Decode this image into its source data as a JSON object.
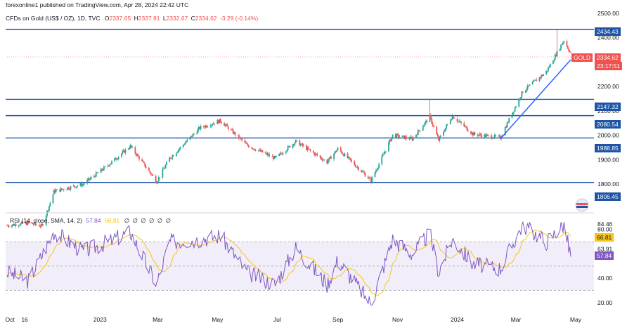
{
  "header": {
    "published": "forexonline1 published on TradingView.com, Apr 28, 2024 22:42 UTC",
    "symbol_line": "CFDs on Gold (US$ / OZ), 1D, TVC",
    "ohlc": {
      "O": "2337.65",
      "H": "2337.91",
      "L": "2332.67",
      "C": "2334.62",
      "change": "-3.29 (-0.14%)"
    }
  },
  "price_tag": {
    "symbol": "GOLD",
    "price": "2334.62",
    "countdown": "23:17:51"
  },
  "levels": [
    "2434.43",
    "2147.32",
    "2080.54",
    "1988.85",
    "1806.45"
  ],
  "rsi_panel": {
    "label": "RSI (14, close, SMA, 14, 2)",
    "rsi_value": "57.84",
    "sma_value": "66.81",
    "extra_values": [
      "∅",
      "∅",
      "∅",
      "∅",
      "∅",
      "∅"
    ],
    "axis_labels": [
      "84.46",
      "80.00",
      "63.91",
      "40.00",
      "20.00"
    ]
  },
  "colors": {
    "up": "#26a69a",
    "down": "#ef5350",
    "level_line": "#1e53a6",
    "rsi_line": "#7e57c2",
    "rsi_sma": "#f5c518",
    "rsi_band": "#ede7f6",
    "price_tag": "#ef5350",
    "trend_line": "#2962ff"
  },
  "chart_data": {
    "type": "candlestick",
    "price_axis_ticks": [
      "2500.00",
      "2400.00",
      "2300.00",
      "2200.00",
      "2100.00",
      "2000.00",
      "1900.00",
      "1800.00"
    ],
    "time_axis_labels": [
      "Oct",
      "16",
      "2023",
      "Mar",
      "May",
      "Jul",
      "Sep",
      "Nov",
      "2024",
      "Mar",
      "May"
    ],
    "price_path": [
      [
        "2022-09-28",
        1630
      ],
      [
        "2022-10-20",
        1640
      ],
      [
        "2022-11-03",
        1628
      ],
      [
        "2022-11-15",
        1770
      ],
      [
        "2022-12-15",
        1800
      ],
      [
        "2023-01-10",
        1880
      ],
      [
        "2023-02-01",
        1955
      ],
      [
        "2023-02-28",
        1810
      ],
      [
        "2023-03-13",
        1905
      ],
      [
        "2023-04-13",
        2030
      ],
      [
        "2023-05-04",
        2060
      ],
      [
        "2023-05-31",
        1960
      ],
      [
        "2023-06-29",
        1905
      ],
      [
        "2023-07-20",
        1975
      ],
      [
        "2023-08-21",
        1890
      ],
      [
        "2023-09-01",
        1945
      ],
      [
        "2023-10-05",
        1815
      ],
      [
        "2023-10-27",
        2000
      ],
      [
        "2023-11-16",
        1985
      ],
      [
        "2023-12-04",
        2075
      ],
      [
        "2023-12-13",
        1980
      ],
      [
        "2023-12-27",
        2080
      ],
      [
        "2024-01-17",
        2005
      ],
      [
        "2024-02-14",
        1990
      ],
      [
        "2024-03-08",
        2180
      ],
      [
        "2024-04-01",
        2260
      ],
      [
        "2024-04-19",
        2390
      ],
      [
        "2024-04-26",
        2335
      ]
    ],
    "support_resistance": [
      2434.43,
      2147.32,
      2080.54,
      1988.85,
      1806.45
    ],
    "trend_line": [
      [
        "2024-02-14",
        1985
      ],
      [
        "2024-04-26",
        2310
      ]
    ],
    "last": {
      "open": 2337.65,
      "high": 2337.91,
      "low": 2332.67,
      "close": 2334.62
    },
    "rsi_path": [
      [
        "2022-09-28",
        45
      ],
      [
        "2022-10-20",
        38
      ],
      [
        "2022-11-15",
        78
      ],
      [
        "2022-12-15",
        62
      ],
      [
        "2023-01-10",
        70
      ],
      [
        "2023-02-01",
        78
      ],
      [
        "2023-02-28",
        35
      ],
      [
        "2023-03-13",
        70
      ],
      [
        "2023-04-13",
        72
      ],
      [
        "2023-05-04",
        75
      ],
      [
        "2023-05-31",
        45
      ],
      [
        "2023-06-29",
        35
      ],
      [
        "2023-07-20",
        65
      ],
      [
        "2023-08-21",
        35
      ],
      [
        "2023-09-01",
        55
      ],
      [
        "2023-10-05",
        19
      ],
      [
        "2023-10-27",
        72
      ],
      [
        "2023-11-16",
        60
      ],
      [
        "2023-12-04",
        77
      ],
      [
        "2023-12-13",
        45
      ],
      [
        "2023-12-27",
        72
      ],
      [
        "2024-01-17",
        52
      ],
      [
        "2024-02-14",
        48
      ],
      [
        "2024-03-08",
        84
      ],
      [
        "2024-04-01",
        70
      ],
      [
        "2024-04-19",
        84
      ],
      [
        "2024-04-26",
        57.84
      ]
    ],
    "rsi_bands": [
      70,
      50,
      30
    ]
  }
}
